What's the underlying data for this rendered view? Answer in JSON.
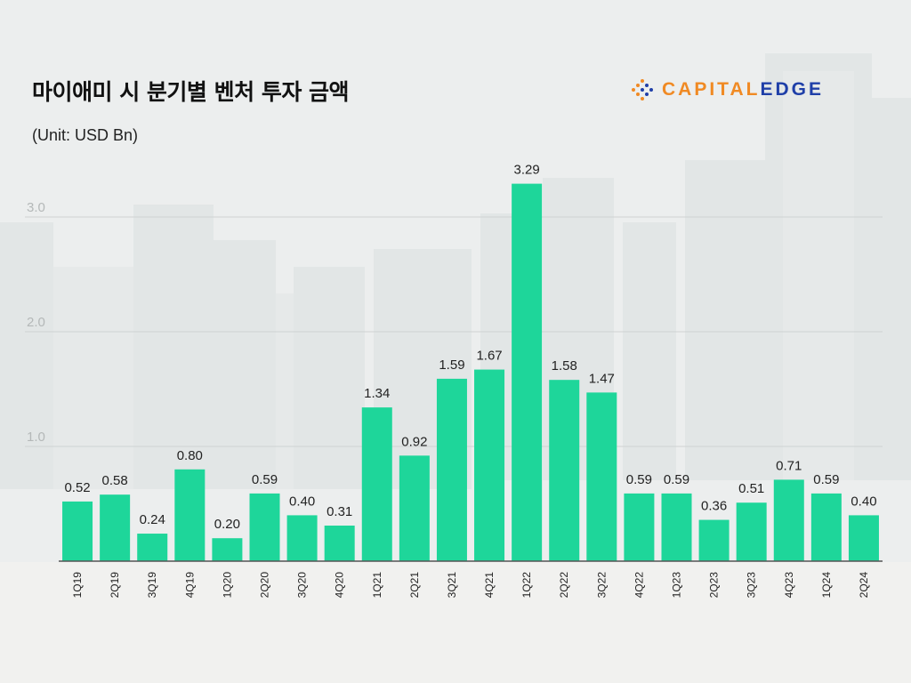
{
  "header": {
    "title": "마이애미 시 분기별 벤처 투자 금액",
    "unit": "(Unit: USD Bn)"
  },
  "logo": {
    "word_left": "CAPITAL",
    "word_right": "EDGE",
    "color_left": "#f08a24",
    "color_right": "#1f3fa8"
  },
  "colors": {
    "bar": "#1ed69a",
    "grid": "#cfd3d3",
    "axis": "#555555",
    "tick_label": "#b4b8b8",
    "value_label": "#222222"
  },
  "chart_data": {
    "type": "bar",
    "title": "마이애미 시 분기별 벤처 투자 금액",
    "xlabel": "",
    "ylabel": "(Unit: USD Bn)",
    "ylim": [
      0,
      3.5
    ],
    "yticks": [
      1.0,
      2.0,
      3.0
    ],
    "ytick_labels": [
      "1.0",
      "2.0",
      "3.0"
    ],
    "grid": true,
    "categories": [
      "1Q19",
      "2Q19",
      "3Q19",
      "4Q19",
      "1Q20",
      "2Q20",
      "3Q20",
      "4Q20",
      "1Q21",
      "2Q21",
      "3Q21",
      "4Q21",
      "1Q22",
      "2Q22",
      "3Q22",
      "4Q22",
      "1Q23",
      "2Q23",
      "3Q23",
      "4Q23",
      "1Q24",
      "2Q24"
    ],
    "values": [
      0.52,
      0.58,
      0.24,
      0.8,
      0.2,
      0.59,
      0.4,
      0.31,
      1.34,
      0.92,
      1.59,
      1.67,
      3.29,
      1.58,
      1.47,
      0.59,
      0.59,
      0.36,
      0.51,
      0.71,
      0.59,
      0.4
    ],
    "value_labels": [
      "0.52",
      "0.58",
      "0.24",
      "0.80",
      "0.20",
      "0.59",
      "0.40",
      "0.31",
      "1.34",
      "0.92",
      "1.59",
      "1.67",
      "3.29",
      "1.58",
      "1.47",
      "0.59",
      "0.59",
      "0.36",
      "0.51",
      "0.71",
      "0.59",
      "0.40"
    ]
  }
}
